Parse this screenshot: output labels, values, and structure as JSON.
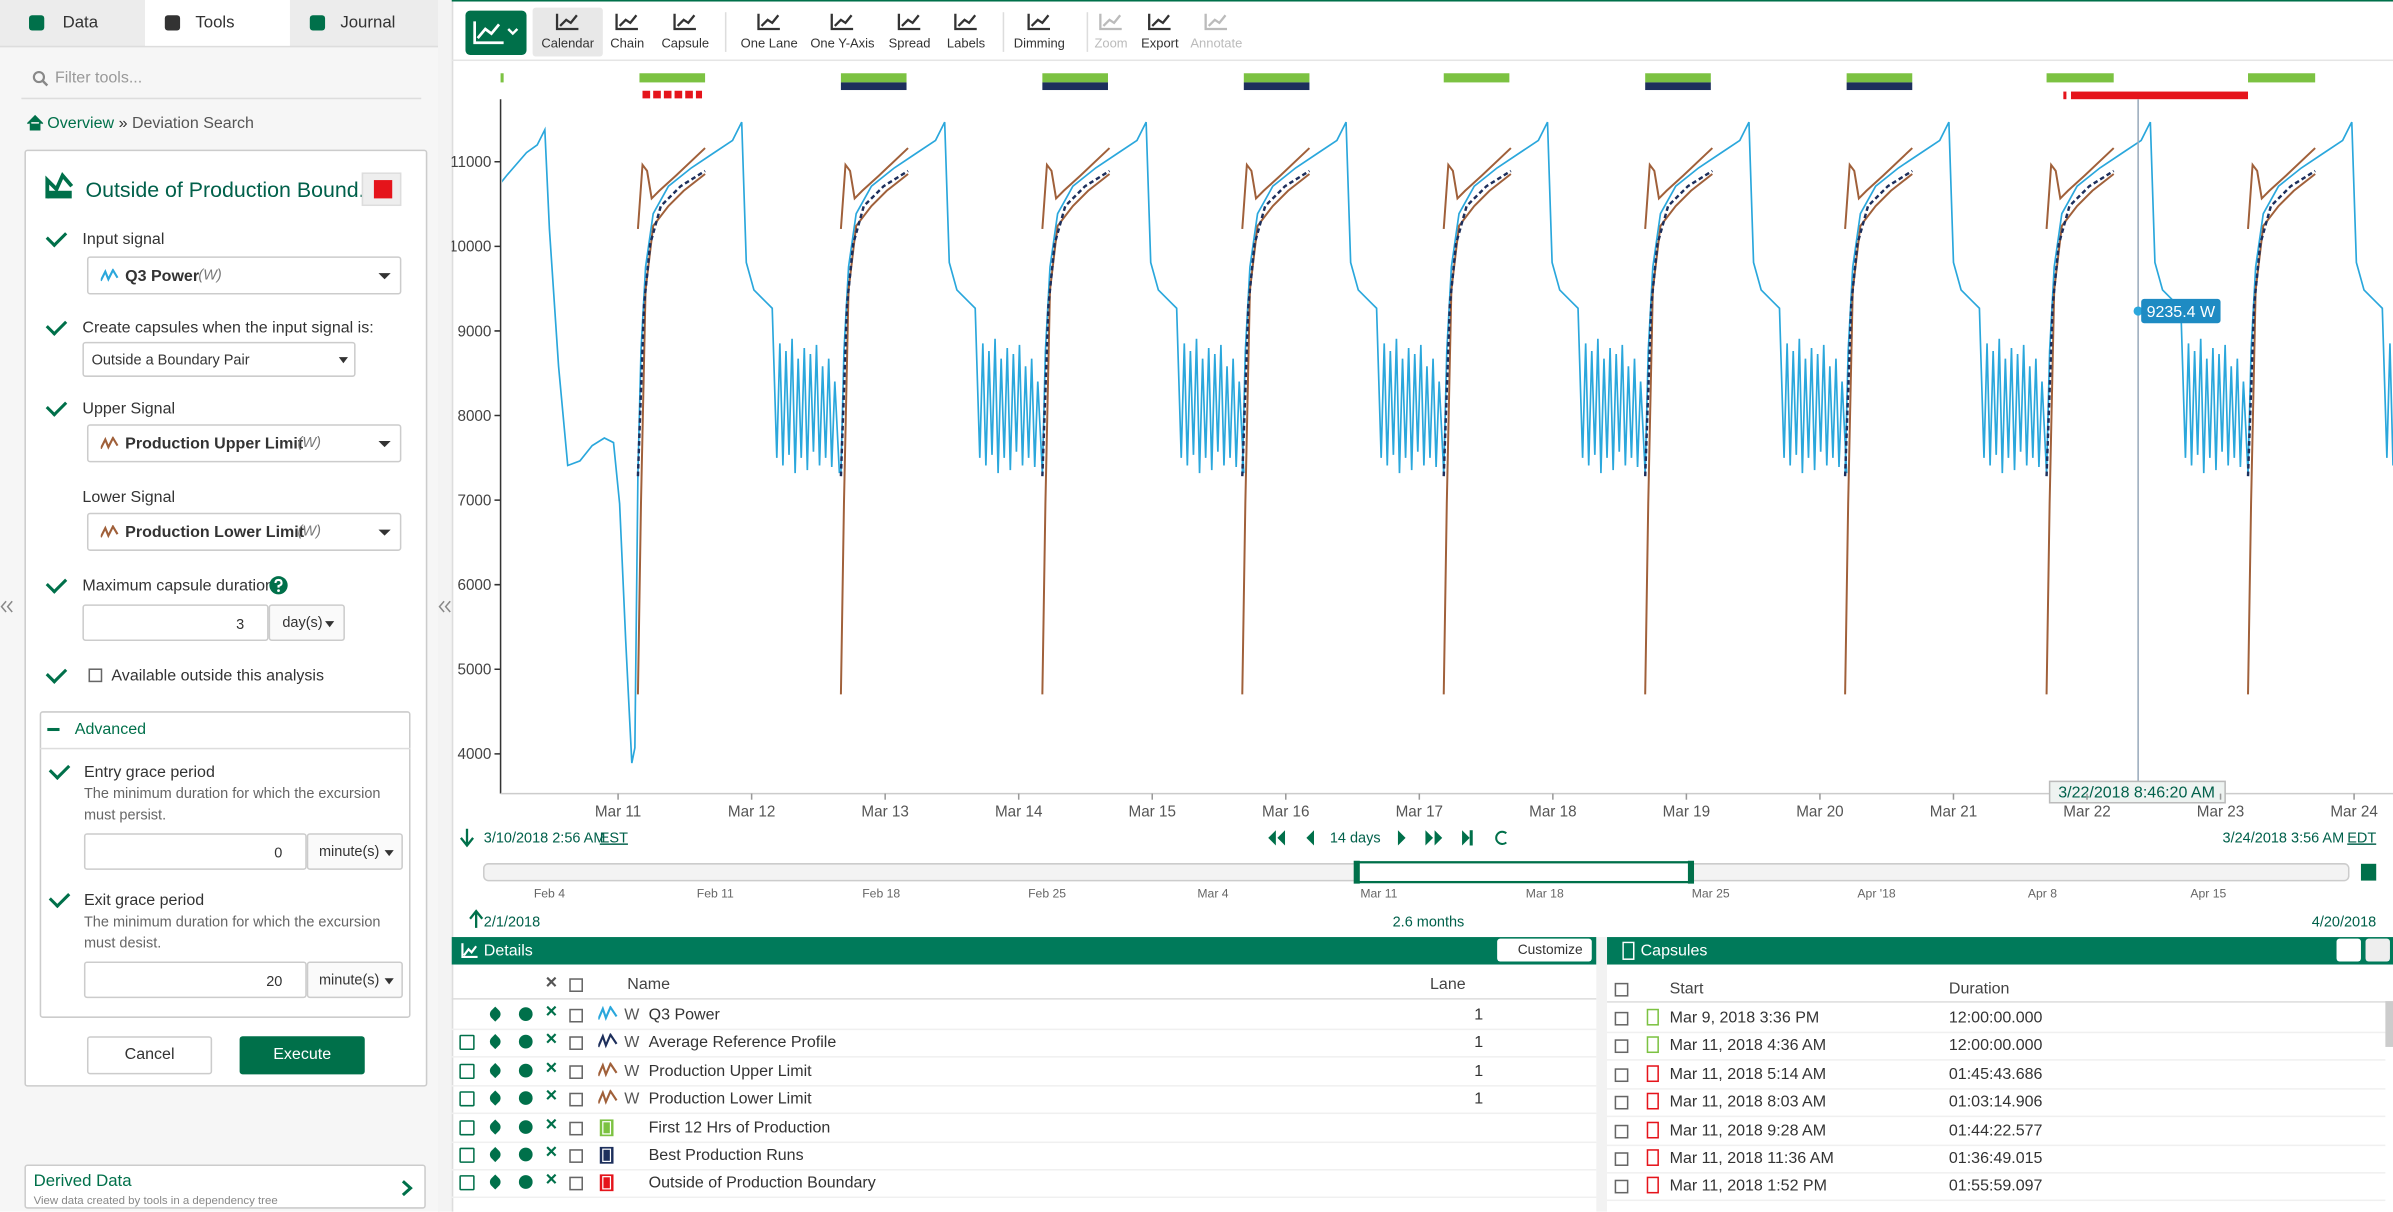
{
  "left_panel": {
    "tabs": [
      "Data",
      "Tools",
      "Journal"
    ],
    "filter_placeholder": "Filter tools...",
    "breadcrumb": {
      "home": "Overview",
      "separator": "»",
      "current": "Deviation Search"
    },
    "tool": {
      "title": "Outside of Production Bound...",
      "input_signal": {
        "label": "Input signal",
        "value": "Q3 Power",
        "unit": "(W)"
      },
      "condition": {
        "label": "Create capsules when the input signal is:",
        "value": "Outside a Boundary Pair"
      },
      "upper_signal": {
        "label": "Upper Signal",
        "value": "Production Upper Limit",
        "unit": "(W)"
      },
      "lower_signal": {
        "label": "Lower Signal",
        "value": "Production Lower Limit",
        "unit": "(W)"
      },
      "max_duration": {
        "label": "Maximum capsule duration",
        "value": 3,
        "unit": "day(s)"
      },
      "available_outside": "Available outside this analysis",
      "advanced": {
        "title": "Advanced",
        "entry": {
          "label": "Entry grace period",
          "description": "The minimum duration for which the excursion must persist.",
          "value": 0,
          "unit": "minute(s)"
        },
        "exit": {
          "label": "Exit grace period",
          "description": "The minimum duration for which the excursion must desist.",
          "value": 20,
          "unit": "minute(s)"
        }
      },
      "cancel": "Cancel",
      "execute": "Execute"
    },
    "derived_data": {
      "title": "Derived Data",
      "subtitle": "View data created by tools in a dependency tree"
    }
  },
  "toolbar": {
    "buttons": [
      {
        "label": "Calendar",
        "enabled": true
      },
      {
        "label": "Chain",
        "enabled": true
      },
      {
        "label": "Capsule",
        "enabled": true
      },
      {
        "label": "One Lane",
        "enabled": true
      },
      {
        "label": "One Y-Axis",
        "enabled": true
      },
      {
        "label": "Spread",
        "enabled": true
      },
      {
        "label": "Labels",
        "enabled": true
      },
      {
        "label": "Dimming",
        "enabled": true
      },
      {
        "label": "Zoom",
        "enabled": false
      },
      {
        "label": "Export",
        "enabled": true
      },
      {
        "label": "Annotate",
        "enabled": false
      }
    ]
  },
  "chart_data": {
    "type": "line",
    "ylim": [
      3530,
      11740
    ],
    "yticks": [
      4000,
      5000,
      6000,
      7000,
      8000,
      9000,
      10000,
      11000
    ],
    "categories": [
      "Mar 11",
      "Mar 12",
      "Mar 13",
      "Mar 14",
      "Mar 15",
      "Mar 16",
      "Mar 17",
      "Mar 18",
      "Mar 19",
      "Mar 20",
      "Mar 21",
      "Mar 22",
      "Mar 23",
      "Mar 24"
    ],
    "cursor": {
      "value": 9235.4,
      "label": "9235.4 W",
      "time": "3/22/2018 8:46:20 AM"
    }
  },
  "time_bar": {
    "start": "3/10/2018 2:56 AM",
    "start_zone": "EST",
    "duration": "14 days",
    "end": "3/24/2018 3:56 AM",
    "end_zone": "EDT"
  },
  "overview": {
    "labels": [
      "Feb 4",
      "Feb 11",
      "Feb 18",
      "Feb 25",
      "Mar 4",
      "Mar 11",
      "Mar 18",
      "Mar 25",
      "Apr '18",
      "Apr 8",
      "Apr 15"
    ],
    "start": "2/1/2018",
    "span": "2.6 months",
    "end": "4/20/2018"
  },
  "details": {
    "title": "Details",
    "customize": "Customize",
    "columns": {
      "name": "Name",
      "lane": "Lane"
    },
    "rows": [
      {
        "name": "Q3 Power",
        "unit": "W",
        "lane": 1,
        "color": "#2aa7dc"
      },
      {
        "name": "Average Reference Profile",
        "unit": "W",
        "lane": 1,
        "color": "#1d2f5c"
      },
      {
        "name": "Production Upper Limit",
        "unit": "W",
        "lane": 1,
        "color": "#a0603a"
      },
      {
        "name": "Production Lower Limit",
        "unit": "W",
        "lane": 1,
        "color": "#a0603a"
      },
      {
        "name": "First 12 Hrs of Production",
        "color": "#7cc242"
      },
      {
        "name": "Best Production Runs",
        "color": "#1d2f5c"
      },
      {
        "name": "Outside of Production Boundary",
        "color": "#e5141b"
      }
    ]
  },
  "capsules": {
    "title": "Capsules",
    "columns": {
      "start": "Start",
      "duration": "Duration"
    },
    "rows": [
      {
        "start": "Mar 9, 2018 3:36 PM",
        "duration": "12:00:00.000",
        "color": "#7cc242"
      },
      {
        "start": "Mar 11, 2018 4:36 AM",
        "duration": "12:00:00.000",
        "color": "#7cc242"
      },
      {
        "start": "Mar 11, 2018 5:14 AM",
        "duration": "01:45:43.686",
        "color": "#e5141b"
      },
      {
        "start": "Mar 11, 2018 8:03 AM",
        "duration": "01:03:14.906",
        "color": "#e5141b"
      },
      {
        "start": "Mar 11, 2018 9:28 AM",
        "duration": "01:44:22.577",
        "color": "#e5141b"
      },
      {
        "start": "Mar 11, 2018 11:36 AM",
        "duration": "01:36:49.015",
        "color": "#e5141b"
      },
      {
        "start": "Mar 11, 2018 1:52 PM",
        "duration": "01:55:59.097",
        "color": "#e5141b"
      }
    ]
  }
}
